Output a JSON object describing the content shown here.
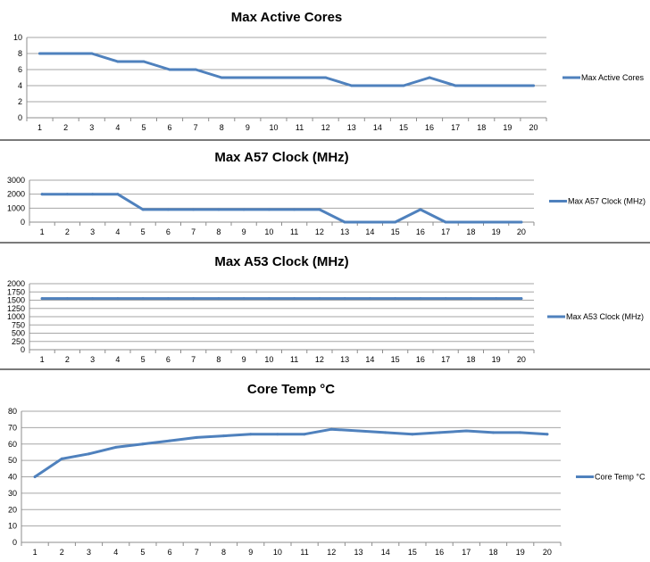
{
  "chart_data": [
    {
      "type": "line",
      "title": "Max Active Cores",
      "x": [
        1,
        2,
        3,
        4,
        5,
        6,
        7,
        8,
        9,
        10,
        11,
        12,
        13,
        14,
        15,
        16,
        17,
        18,
        19,
        20
      ],
      "series": [
        {
          "name": "Max Active Cores",
          "values": [
            8,
            8,
            8,
            7,
            7,
            6,
            6,
            5,
            5,
            5,
            5,
            5,
            4,
            4,
            4,
            5,
            4,
            4,
            4,
            4
          ]
        }
      ],
      "ylim": [
        0,
        10
      ],
      "yticks": [
        0,
        2,
        4,
        6,
        8,
        10
      ],
      "grid": true,
      "legend": "right",
      "color": "#4f81bd"
    },
    {
      "type": "line",
      "title": "Max A57 Clock (MHz)",
      "x": [
        1,
        2,
        3,
        4,
        5,
        6,
        7,
        8,
        9,
        10,
        11,
        12,
        13,
        14,
        15,
        16,
        17,
        18,
        19,
        20
      ],
      "series": [
        {
          "name": "Max A57 Clock (MHz)",
          "values": [
            2000,
            2000,
            2000,
            2000,
            900,
            900,
            900,
            900,
            900,
            900,
            900,
            900,
            0,
            0,
            0,
            900,
            0,
            0,
            0,
            0
          ]
        }
      ],
      "ylim": [
        0,
        3000
      ],
      "yticks": [
        0,
        1000,
        2000,
        3000
      ],
      "grid": true,
      "legend": "right",
      "color": "#4f81bd"
    },
    {
      "type": "line",
      "title": "Max A53 Clock (MHz)",
      "x": [
        1,
        2,
        3,
        4,
        5,
        6,
        7,
        8,
        9,
        10,
        11,
        12,
        13,
        14,
        15,
        16,
        17,
        18,
        19,
        20
      ],
      "series": [
        {
          "name": "Max A53 Clock (MHz)",
          "values": [
            1550,
            1550,
            1550,
            1550,
            1550,
            1550,
            1550,
            1550,
            1550,
            1550,
            1550,
            1550,
            1550,
            1550,
            1550,
            1550,
            1550,
            1550,
            1550,
            1550
          ]
        }
      ],
      "ylim": [
        0,
        2000
      ],
      "yticks": [
        0,
        250,
        500,
        750,
        1000,
        1250,
        1500,
        1750,
        2000
      ],
      "grid": true,
      "legend": "right",
      "color": "#4f81bd"
    },
    {
      "type": "line",
      "title": "Core Temp °C",
      "x": [
        1,
        2,
        3,
        4,
        5,
        6,
        7,
        8,
        9,
        10,
        11,
        12,
        13,
        14,
        15,
        16,
        17,
        18,
        19,
        20
      ],
      "series": [
        {
          "name": "Core Temp °C",
          "values": [
            40,
            51,
            54,
            58,
            60,
            62,
            64,
            65,
            66,
            66,
            66,
            69,
            68,
            67,
            66,
            67,
            68,
            67,
            67,
            66
          ]
        }
      ],
      "ylim": [
        0,
        80
      ],
      "yticks": [
        0,
        10,
        20,
        30,
        40,
        50,
        60,
        70,
        80
      ],
      "grid": true,
      "legend": "right",
      "color": "#4f81bd"
    }
  ]
}
